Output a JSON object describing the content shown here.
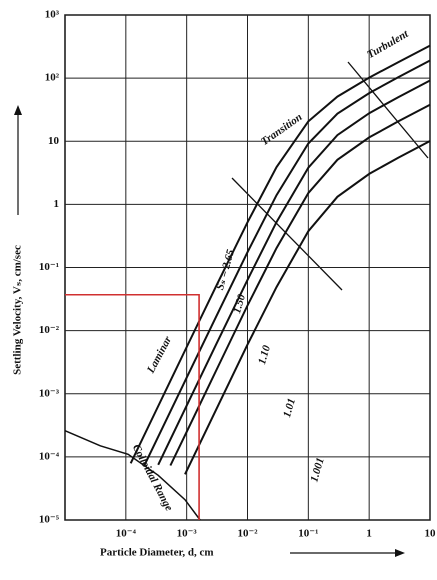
{
  "chart_data": {
    "type": "line",
    "x_label": "Particle Diameter, d, cm",
    "y_label": "Settling Velocity, Vₛ, cm/sec",
    "xlog": true,
    "ylog": true,
    "grid": true,
    "xlim": [
      1e-05,
      10
    ],
    "ylim": [
      1e-05,
      1000
    ],
    "xticks": [
      {
        "value": 0.0001,
        "label": "10⁻⁴"
      },
      {
        "value": 0.001,
        "label": "10⁻³"
      },
      {
        "value": 0.01,
        "label": "10⁻²"
      },
      {
        "value": 0.1,
        "label": "10⁻¹"
      },
      1,
      10
    ],
    "yticks": [
      {
        "value": 1e-05,
        "label": "10⁻⁵"
      },
      {
        "value": 0.0001,
        "label": "10⁻⁴"
      },
      {
        "value": 0.001,
        "label": "10⁻³"
      },
      {
        "value": 0.01,
        "label": "10⁻²"
      },
      {
        "value": 0.1,
        "label": "10⁻¹"
      },
      1,
      10,
      {
        "value": 100,
        "label": "10²"
      },
      {
        "value": 1000,
        "label": "10³"
      }
    ],
    "series": [
      {
        "name": "Sₛ = 2.65",
        "color": "#111111",
        "x": [
          0.00012,
          0.0003,
          0.001,
          0.003,
          0.01,
          0.03,
          0.1,
          0.3,
          1,
          3,
          10
        ],
        "values": [
          7.9e-05,
          0.000495,
          0.0055,
          0.049,
          0.52,
          3.88,
          20.6,
          51,
          102,
          179,
          327
        ]
      },
      {
        "name": "1.50",
        "color": "#111111",
        "x": [
          0.0002,
          0.0003,
          0.001,
          0.003,
          0.01,
          0.03,
          0.1,
          0.3,
          1,
          3,
          10
        ],
        "values": [
          7.2e-05,
          0.000162,
          0.0018,
          0.0161,
          0.175,
          1.4,
          9.2,
          27.3,
          58,
          103,
          190
        ]
      },
      {
        "name": "1.10",
        "color": "#111111",
        "x": [
          0.00034,
          0.001,
          0.003,
          0.01,
          0.03,
          0.1,
          0.3,
          1,
          3,
          10
        ],
        "values": [
          7.5e-05,
          0.00065,
          0.00585,
          0.0636,
          0.524,
          3.81,
          12.5,
          27.8,
          49.8,
          91.7
        ]
      },
      {
        "name": "1.01",
        "color": "#111111",
        "x": [
          0.00054,
          0.001,
          0.003,
          0.01,
          0.03,
          0.1,
          0.3,
          1,
          3,
          10
        ],
        "values": [
          7.3e-05,
          0.00025,
          0.00225,
          0.025,
          0.203,
          1.51,
          5.09,
          11.5,
          20.6,
          37.9
        ]
      },
      {
        "name": "1.001",
        "color": "#111111",
        "x": [
          0.00094,
          0.003,
          0.01,
          0.03,
          0.1,
          0.3,
          1,
          3,
          10
        ],
        "values": [
          5.3e-05,
          0.00054,
          0.006,
          0.049,
          0.376,
          1.32,
          3.04,
          5.48,
          10.1
        ]
      }
    ],
    "colloidal_boundary": {
      "label": "Colloidal Range",
      "x": [
        1e-05,
        3.8e-05,
        0.000109,
        0.00034,
        0.00094,
        0.00166
      ],
      "values": [
        0.00026,
        0.00015,
        0.00011,
        5.1e-05,
        2.1e-05,
        1e-05
      ]
    },
    "regions": [
      "Laminar",
      "Transition",
      "Turbulent"
    ],
    "reference": {
      "x": 0.0016,
      "y": 0.037,
      "color": "#d03030"
    }
  }
}
